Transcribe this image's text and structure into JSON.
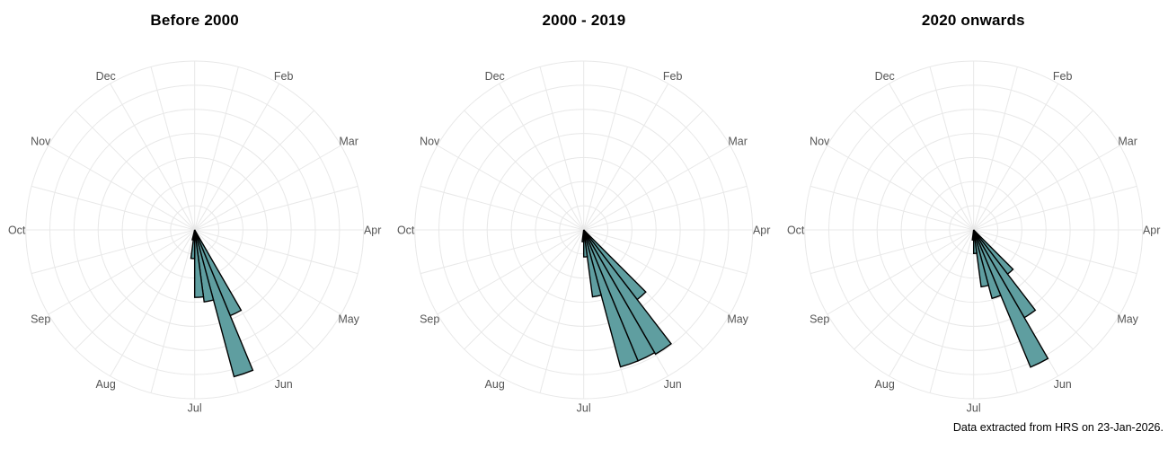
{
  "figure": {
    "background": "#ffffff",
    "caption": "Data extracted from HRS on 23-Jan-2026."
  },
  "style": {
    "petal_fill": "#5f9ea0",
    "petal_stroke": "#000000",
    "petal_stroke_width": 1.4,
    "grid_color": "#e8e8e8",
    "month_label_color": "#555555",
    "title_color": "#000000",
    "caption_color": "#000000"
  },
  "chart_data": [
    {
      "type": "polar-rose",
      "title": "Before 2000",
      "categories": [
        "Jan",
        "Feb",
        "Mar",
        "Apr",
        "May",
        "Jun",
        "Jul",
        "Aug",
        "Sep",
        "Oct",
        "Nov",
        "Dec"
      ],
      "hidden_category_labels": [
        "Jan"
      ],
      "angle_units": "degrees clockwise from top; each month = 30 deg; labels mark month start",
      "grid": {
        "rings": 7,
        "spoke_step_deg": 15,
        "radial_tick_labels_shown": false
      },
      "value_note": "radius_frac = petal length as fraction of outer grid ring (no numeric radial axis shown)",
      "petals": [
        {
          "angle_start_deg": 150.0,
          "angle_end_deg": 157.5,
          "radius_frac": 0.55
        },
        {
          "angle_start_deg": 157.5,
          "angle_end_deg": 165.0,
          "radius_frac": 0.9
        },
        {
          "angle_start_deg": 165.0,
          "angle_end_deg": 172.5,
          "radius_frac": 0.43
        },
        {
          "angle_start_deg": 172.5,
          "angle_end_deg": 180.0,
          "radius_frac": 0.4
        },
        {
          "angle_start_deg": 180.0,
          "angle_end_deg": 187.5,
          "radius_frac": 0.17
        },
        {
          "angle_start_deg": 187.5,
          "angle_end_deg": 194.0,
          "radius_frac": 0.06
        }
      ]
    },
    {
      "type": "polar-rose",
      "title": "2000 - 2019",
      "categories": [
        "Jan",
        "Feb",
        "Mar",
        "Apr",
        "May",
        "Jun",
        "Jul",
        "Aug",
        "Sep",
        "Oct",
        "Nov",
        "Dec"
      ],
      "hidden_category_labels": [
        "Jan"
      ],
      "angle_units": "degrees clockwise from top; each month = 30 deg; labels mark month start",
      "grid": {
        "rings": 7,
        "spoke_step_deg": 15,
        "radial_tick_labels_shown": false
      },
      "value_note": "radius_frac = petal length as fraction of outer grid ring (no numeric radial axis shown)",
      "petals": [
        {
          "angle_start_deg": 135.0,
          "angle_end_deg": 142.5,
          "radius_frac": 0.52
        },
        {
          "angle_start_deg": 142.5,
          "angle_end_deg": 150.0,
          "radius_frac": 0.85
        },
        {
          "angle_start_deg": 150.0,
          "angle_end_deg": 157.5,
          "radius_frac": 0.84
        },
        {
          "angle_start_deg": 157.5,
          "angle_end_deg": 165.0,
          "radius_frac": 0.84
        },
        {
          "angle_start_deg": 165.0,
          "angle_end_deg": 172.5,
          "radius_frac": 0.4
        },
        {
          "angle_start_deg": 172.5,
          "angle_end_deg": 180.0,
          "radius_frac": 0.16
        },
        {
          "angle_start_deg": 180.0,
          "angle_end_deg": 187.5,
          "radius_frac": 0.07
        }
      ]
    },
    {
      "type": "polar-rose",
      "title": "2020 onwards",
      "categories": [
        "Jan",
        "Feb",
        "Mar",
        "Apr",
        "May",
        "Jun",
        "Jul",
        "Aug",
        "Sep",
        "Oct",
        "Nov",
        "Dec"
      ],
      "hidden_category_labels": [
        "Jan"
      ],
      "angle_units": "degrees clockwise from top; each month = 30 deg; labels mark month start",
      "grid": {
        "rings": 7,
        "spoke_step_deg": 15,
        "radial_tick_labels_shown": false
      },
      "value_note": "radius_frac = petal length as fraction of outer grid ring (no numeric radial axis shown)",
      "petals": [
        {
          "angle_start_deg": 135.0,
          "angle_end_deg": 142.5,
          "radius_frac": 0.33
        },
        {
          "angle_start_deg": 142.5,
          "angle_end_deg": 150.0,
          "radius_frac": 0.6
        },
        {
          "angle_start_deg": 150.0,
          "angle_end_deg": 157.5,
          "radius_frac": 0.88
        },
        {
          "angle_start_deg": 157.5,
          "angle_end_deg": 165.0,
          "radius_frac": 0.42
        },
        {
          "angle_start_deg": 165.0,
          "angle_end_deg": 172.5,
          "radius_frac": 0.34
        },
        {
          "angle_start_deg": 172.5,
          "angle_end_deg": 180.0,
          "radius_frac": 0.14
        },
        {
          "angle_start_deg": 180.0,
          "angle_end_deg": 187.5,
          "radius_frac": 0.06
        }
      ]
    }
  ]
}
